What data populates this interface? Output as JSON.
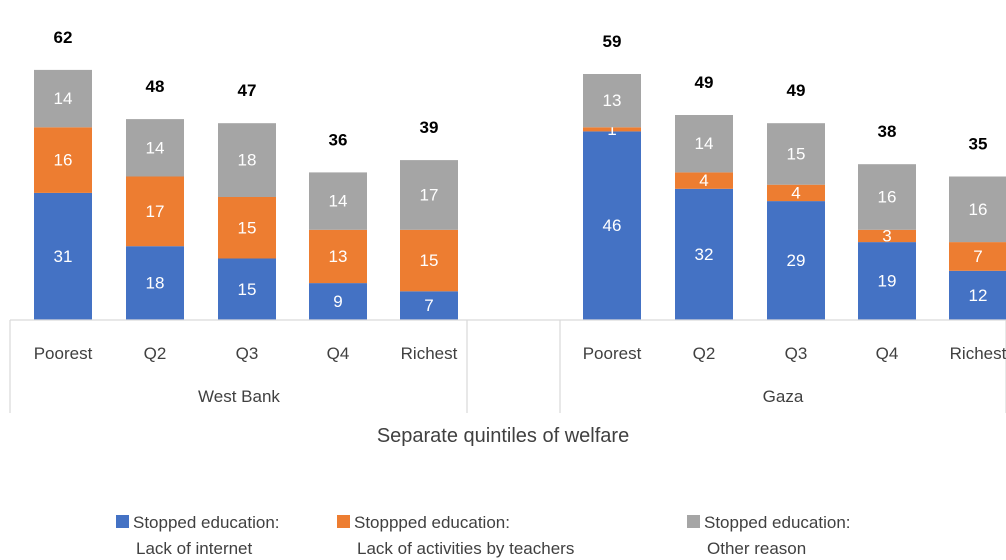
{
  "chart_data": {
    "type": "bar",
    "stacked": true,
    "xlabel": "Separate quintiles of welfare",
    "groups": [
      {
        "name": "West Bank",
        "categories": [
          "Poorest",
          "Q2",
          "Q3",
          "Q4",
          "Richest"
        ]
      },
      {
        "name": "Gaza",
        "categories": [
          "Poorest",
          "Q2",
          "Q3",
          "Q4",
          "Richest"
        ]
      }
    ],
    "series": [
      {
        "name": "Stopped education: Lack of internet",
        "color": "#4472c4",
        "values": [
          31,
          18,
          15,
          9,
          7,
          46,
          32,
          29,
          19,
          12
        ]
      },
      {
        "name": "Stoppped education: Lack of activities by teachers",
        "color": "#ed7d31",
        "values": [
          16,
          17,
          15,
          13,
          15,
          1,
          4,
          4,
          3,
          7
        ]
      },
      {
        "name": "Stopped education: Other reason",
        "color": "#a5a5a5",
        "values": [
          14,
          14,
          18,
          14,
          17,
          13,
          14,
          15,
          16,
          16
        ]
      }
    ],
    "totals": [
      62,
      48,
      47,
      36,
      39,
      59,
      49,
      49,
      38,
      35
    ],
    "legend_position": "bottom",
    "grid": false
  },
  "legend": [
    {
      "line1": "Stopped education:",
      "line2": "Lack of internet",
      "color": "#4472c4"
    },
    {
      "line1": "Stoppped education:",
      "line2": "Lack of activities by teachers",
      "color": "#ed7d31"
    },
    {
      "line1": "Stopped education:",
      "line2": "Other reason",
      "color": "#a5a5a5"
    }
  ]
}
